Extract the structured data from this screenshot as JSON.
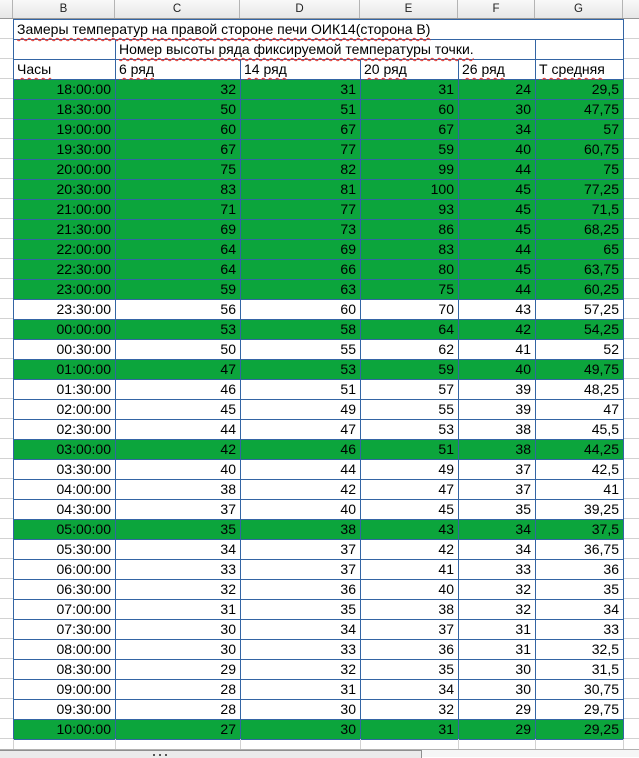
{
  "colors": {
    "highlight_green": "#0ca53c",
    "cell_border_blue": "#3465a4",
    "grid_gray": "#d2d2d2",
    "spellcheck_red": "#e3342c"
  },
  "column_letters": [
    "B",
    "C",
    "D",
    "E",
    "F",
    "G"
  ],
  "title": "Замеры температур на правой стороне печи ОИК14(сторона В)",
  "subtitle": "Номер высоты ряда фиксируемой температуры точки.",
  "table": {
    "headers": [
      "Часы",
      "6 ряд",
      "14 ряд",
      "20 ряд",
      "26 ряд",
      "Т средняя"
    ],
    "rows": [
      {
        "time": "18:00:00",
        "values": [
          "32",
          "31",
          "31",
          "24",
          "29,5"
        ],
        "highlight": true
      },
      {
        "time": "18:30:00",
        "values": [
          "50",
          "51",
          "60",
          "30",
          "47,75"
        ],
        "highlight": true
      },
      {
        "time": "19:00:00",
        "values": [
          "60",
          "67",
          "67",
          "34",
          "57"
        ],
        "highlight": true
      },
      {
        "time": "19:30:00",
        "values": [
          "67",
          "77",
          "59",
          "40",
          "60,75"
        ],
        "highlight": true
      },
      {
        "time": "20:00:00",
        "values": [
          "75",
          "82",
          "99",
          "44",
          "75"
        ],
        "highlight": true
      },
      {
        "time": "20:30:00",
        "values": [
          "83",
          "81",
          "100",
          "45",
          "77,25"
        ],
        "highlight": true
      },
      {
        "time": "21:00:00",
        "values": [
          "71",
          "77",
          "93",
          "45",
          "71,5"
        ],
        "highlight": true
      },
      {
        "time": "21:30:00",
        "values": [
          "69",
          "73",
          "86",
          "45",
          "68,25"
        ],
        "highlight": true
      },
      {
        "time": "22:00:00",
        "values": [
          "64",
          "69",
          "83",
          "44",
          "65"
        ],
        "highlight": true
      },
      {
        "time": "22:30:00",
        "values": [
          "64",
          "66",
          "80",
          "45",
          "63,75"
        ],
        "highlight": true
      },
      {
        "time": "23:00:00",
        "values": [
          "59",
          "63",
          "75",
          "44",
          "60,25"
        ],
        "highlight": true
      },
      {
        "time": "23:30:00",
        "values": [
          "56",
          "60",
          "70",
          "43",
          "57,25"
        ],
        "highlight": false
      },
      {
        "time": "00:00:00",
        "values": [
          "53",
          "58",
          "64",
          "42",
          "54,25"
        ],
        "highlight": true
      },
      {
        "time": "00:30:00",
        "values": [
          "50",
          "55",
          "62",
          "41",
          "52"
        ],
        "highlight": false
      },
      {
        "time": "01:00:00",
        "values": [
          "47",
          "53",
          "59",
          "40",
          "49,75"
        ],
        "highlight": true
      },
      {
        "time": "01:30:00",
        "values": [
          "46",
          "51",
          "57",
          "39",
          "48,25"
        ],
        "highlight": false
      },
      {
        "time": "02:00:00",
        "values": [
          "45",
          "49",
          "55",
          "39",
          "47"
        ],
        "highlight": false
      },
      {
        "time": "02:30:00",
        "values": [
          "44",
          "47",
          "53",
          "38",
          "45,5"
        ],
        "highlight": false
      },
      {
        "time": "03:00:00",
        "values": [
          "42",
          "46",
          "51",
          "38",
          "44,25"
        ],
        "highlight": true
      },
      {
        "time": "03:30:00",
        "values": [
          "40",
          "44",
          "49",
          "37",
          "42,5"
        ],
        "highlight": false
      },
      {
        "time": "04:00:00",
        "values": [
          "38",
          "42",
          "47",
          "37",
          "41"
        ],
        "highlight": false
      },
      {
        "time": "04:30:00",
        "values": [
          "37",
          "40",
          "45",
          "35",
          "39,25"
        ],
        "highlight": false
      },
      {
        "time": "05:00:00",
        "values": [
          "35",
          "38",
          "43",
          "34",
          "37,5"
        ],
        "highlight": true
      },
      {
        "time": "05:30:00",
        "values": [
          "34",
          "37",
          "42",
          "34",
          "36,75"
        ],
        "highlight": false
      },
      {
        "time": "06:00:00",
        "values": [
          "33",
          "37",
          "41",
          "33",
          "36"
        ],
        "highlight": false
      },
      {
        "time": "06:30:00",
        "values": [
          "32",
          "36",
          "40",
          "32",
          "35"
        ],
        "highlight": false
      },
      {
        "time": "07:00:00",
        "values": [
          "31",
          "35",
          "38",
          "32",
          "34"
        ],
        "highlight": false
      },
      {
        "time": "07:30:00",
        "values": [
          "30",
          "34",
          "37",
          "31",
          "33"
        ],
        "highlight": false
      },
      {
        "time": "08:00:00",
        "values": [
          "30",
          "33",
          "36",
          "31",
          "32,5"
        ],
        "highlight": false
      },
      {
        "time": "08:30:00",
        "values": [
          "29",
          "32",
          "35",
          "30",
          "31,5"
        ],
        "highlight": false
      },
      {
        "time": "09:00:00",
        "values": [
          "28",
          "31",
          "34",
          "30",
          "30,75"
        ],
        "highlight": false
      },
      {
        "time": "09:30:00",
        "values": [
          "28",
          "30",
          "32",
          "29",
          "29,75"
        ],
        "highlight": false
      },
      {
        "time": "10:00:00",
        "values": [
          "27",
          "30",
          "31",
          "29",
          "29,25"
        ],
        "highlight": true
      }
    ]
  }
}
